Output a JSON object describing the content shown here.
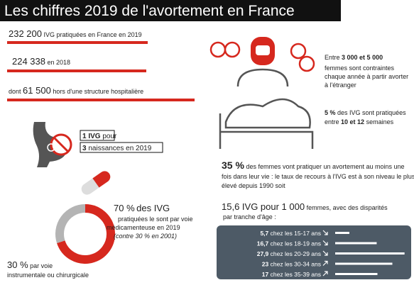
{
  "title": "Les chiffres 2019 de l'avortement en France",
  "stats": [
    {
      "number": "232 200",
      "text": "IVG pratiquées en France en 2019"
    },
    {
      "number": "224 338",
      "text": "en 2018"
    },
    {
      "prefix": "dont",
      "number": "61 500",
      "text": "hors d'une structure hospitalière"
    }
  ],
  "ratio": {
    "lead": "1 IVG",
    "lead_text": "pour",
    "count": "3",
    "count_text": "naissances en 2019"
  },
  "method": {
    "shares": [
      {
        "value": 70,
        "label": "70 %",
        "color": "#d6281e"
      },
      {
        "value": 30,
        "label": "30 %",
        "color": "#b4b4b4"
      }
    ],
    "medication_text": "des IVG",
    "medication_lines": [
      "pratiquées le sont par voie",
      "médicamenteuse en 2019",
      "(contre 30 % en 2001)"
    ],
    "other_text": "par voie",
    "other_lines": [
      "instrumentale ou chirurgicale"
    ]
  },
  "abroad": {
    "lead": "Entre",
    "range": "3 000 et 5 000",
    "lines": [
      "femmes sont contraintes",
      "chaque année à partir avorter",
      "à l'étranger"
    ]
  },
  "late": {
    "share": "5 %",
    "text": "des IVG sont pratiquées",
    "line2_lead": "entre",
    "weeks": "10 et 12",
    "line2_text": "semaines"
  },
  "lifetime": {
    "share": "35 %",
    "text": "des femmes vont pratiquer un avortement au moins une",
    "lines": [
      "fois dans leur vie : le taux de recours à l'IVG est à son niveau le plus",
      "élevé depuis 1990 soit"
    ]
  },
  "rate": {
    "number": "15,6 IVG pour 1 000",
    "text": "femmes, avec des disparités",
    "line2": "par tranche d'âge :"
  },
  "age_groups": [
    {
      "rate": {
        "value": 5.7,
        "label": "5,7"
      },
      "group": "chez les 15-17 ans"
    },
    {
      "rate": {
        "value": 16.7,
        "label": "16,7"
      },
      "group": "chez les 18-19 ans"
    },
    {
      "rate": {
        "value": 27.9,
        "label": "27,9"
      },
      "group": "chez les 20-29 ans"
    },
    {
      "rate": {
        "value": 23,
        "label": "23"
      },
      "group": "chez les 30-34 ans"
    },
    {
      "rate": {
        "value": 17,
        "label": "17"
      },
      "group": "chez les 35-39 ans"
    }
  ]
}
